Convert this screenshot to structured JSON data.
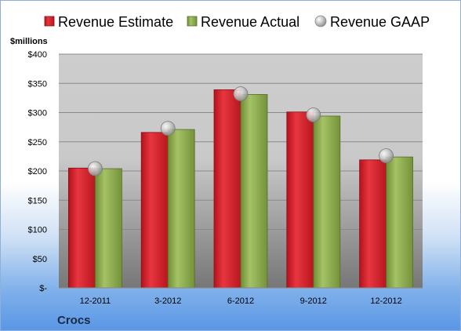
{
  "chart_data": {
    "type": "bar",
    "unit_label": "$millions",
    "company": "Crocs",
    "categories": [
      "12-2011",
      "3-2012",
      "6-2012",
      "9-2012",
      "12-2012"
    ],
    "series": [
      {
        "name": "Revenue Estimate",
        "kind": "bar",
        "color": "#d0202a",
        "values": [
          205,
          266,
          339,
          301,
          219
        ]
      },
      {
        "name": "Revenue Actual",
        "kind": "bar",
        "color": "#8aaa4a",
        "values": [
          204,
          271,
          331,
          294,
          224
        ]
      },
      {
        "name": "Revenue GAAP",
        "kind": "marker",
        "color": "#b8b8b8",
        "values": [
          204,
          273,
          332,
          296,
          226
        ]
      }
    ],
    "ylim": [
      0,
      400
    ],
    "yticks": [
      {
        "value": 400,
        "label": "$400"
      },
      {
        "value": 350,
        "label": "$350"
      },
      {
        "value": 300,
        "label": "$300"
      },
      {
        "value": 250,
        "label": "$250"
      },
      {
        "value": 200,
        "label": "$200"
      },
      {
        "value": 150,
        "label": "$150"
      },
      {
        "value": 100,
        "label": "$100"
      },
      {
        "value": 50,
        "label": "$50"
      },
      {
        "value": 0,
        "label": "$-"
      }
    ],
    "grid": true,
    "legend_position": "top"
  }
}
